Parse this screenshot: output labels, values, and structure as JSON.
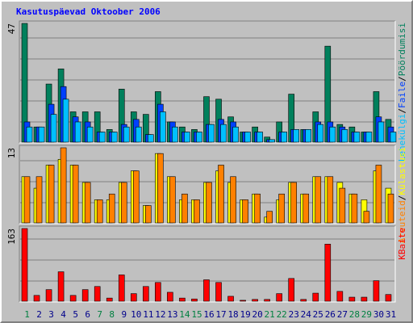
{
  "title": "Kasutuspäevad Oktoober 2006",
  "legend_separator": "/",
  "categories": [
    "1",
    "2",
    "3",
    "4",
    "5",
    "6",
    "7",
    "8",
    "9",
    "10",
    "11",
    "12",
    "13",
    "14",
    "15",
    "16",
    "17",
    "18",
    "19",
    "20",
    "21",
    "22",
    "23",
    "24",
    "25",
    "26",
    "27",
    "28",
    "29",
    "30",
    "31"
  ],
  "category_colors": [
    "#008040",
    "#00008b",
    "#00008b",
    "#00008b",
    "#00008b",
    "#00008b",
    "#008040",
    "#008040",
    "#00008b",
    "#00008b",
    "#00008b",
    "#00008b",
    "#00008b",
    "#008040",
    "#008040",
    "#00008b",
    "#00008b",
    "#00008b",
    "#00008b",
    "#00008b",
    "#008040",
    "#008040",
    "#00008b",
    "#00008b",
    "#00008b",
    "#00008b",
    "#00008b",
    "#008040",
    "#008040",
    "#00008b",
    "#00008b"
  ],
  "chart_data": [
    {
      "type": "bar",
      "ylim": [
        0,
        47
      ],
      "yticks": [
        47
      ],
      "series": [
        {
          "name": "Lehekülgi",
          "color": "#00c0ff",
          "values": [
            6,
            6,
            11,
            17,
            8,
            6,
            4,
            4,
            6,
            6,
            3,
            12,
            6,
            4,
            4,
            7,
            7,
            6,
            4,
            4,
            1,
            4,
            5,
            5,
            7,
            6,
            5,
            4,
            4,
            8,
            4
          ]
        },
        {
          "name": "Faile",
          "color": "#0040ff",
          "values": [
            8,
            6,
            15,
            22,
            10,
            8,
            4,
            4,
            7,
            9,
            3,
            15,
            8,
            4,
            4,
            7,
            9,
            8,
            4,
            4,
            1,
            4,
            5,
            5,
            8,
            8,
            6,
            4,
            4,
            10,
            6
          ]
        },
        {
          "name": "Pöördumisi",
          "color": "#00805c",
          "values": [
            47,
            6,
            23,
            29,
            12,
            12,
            12,
            5,
            21,
            12,
            11,
            20,
            8,
            6,
            5,
            18,
            17,
            10,
            4,
            6,
            2,
            8,
            19,
            5,
            12,
            38,
            7,
            6,
            4,
            20,
            9
          ]
        }
      ]
    },
    {
      "type": "bar",
      "ylim": [
        0,
        13
      ],
      "yticks": [
        13
      ],
      "series": [
        {
          "name": "Arvuteid",
          "color": "#ff8000",
          "values": [
            8,
            8,
            10,
            13,
            10,
            7,
            4,
            5,
            7,
            9,
            3,
            12,
            8,
            5,
            4,
            7,
            10,
            8,
            4,
            5,
            2,
            5,
            7,
            5,
            8,
            8,
            6,
            5,
            2,
            10,
            5
          ]
        },
        {
          "name": "Külastusi",
          "color": "#ffff00",
          "values": [
            8,
            6,
            10,
            11,
            10,
            7,
            4,
            4,
            7,
            9,
            3,
            12,
            8,
            4,
            4,
            7,
            9,
            7,
            4,
            5,
            1,
            4,
            7,
            5,
            8,
            8,
            7,
            5,
            4,
            9,
            6
          ]
        }
      ]
    },
    {
      "type": "bar",
      "ylim": [
        0,
        163
      ],
      "yticks": [
        163
      ],
      "series": [
        {
          "name": "KBaite",
          "color": "#ff0000",
          "values": [
            163,
            13,
            26,
            66,
            13,
            26,
            33,
            7,
            59,
            17,
            33,
            42,
            20,
            7,
            5,
            48,
            42,
            11,
            2,
            4,
            4,
            17,
            51,
            4,
            18,
            128,
            22,
            9,
            9,
            46,
            15
          ]
        }
      ]
    }
  ]
}
